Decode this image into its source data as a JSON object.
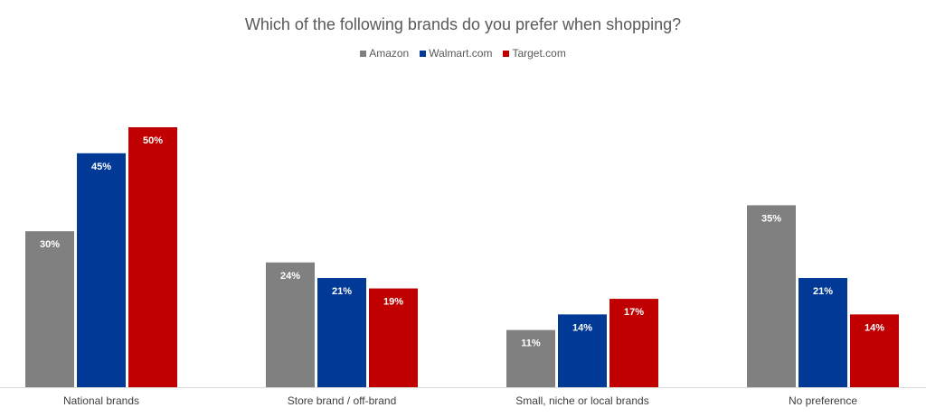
{
  "chart_data": {
    "type": "bar",
    "title": "Which of the following brands do you prefer when shopping?",
    "xlabel": "",
    "ylabel": "",
    "categories": [
      "National brands",
      "Store brand / off-brand",
      "Small, niche or local brands",
      "No preference"
    ],
    "series": [
      {
        "name": "Amazon",
        "values": [
          30,
          24,
          11,
          35
        ],
        "color": "#808080"
      },
      {
        "name": "Walmart.com",
        "values": [
          45,
          21,
          14,
          21
        ],
        "color": "#003a96"
      },
      {
        "name": "Target.com",
        "values": [
          50,
          19,
          17,
          14
        ],
        "color": "#c00000"
      }
    ],
    "value_suffix": "%",
    "ylim": [
      0,
      50
    ],
    "grid": false,
    "legend_position": "top-center"
  }
}
